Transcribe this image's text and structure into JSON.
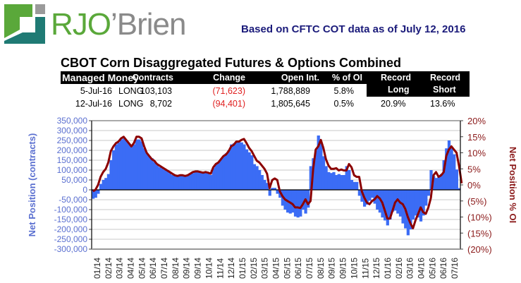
{
  "header": {
    "logo_rjo": "RJO",
    "logo_brien": "’Brien",
    "subtitle": "Based on CFTC COT data as of July 12, 2016"
  },
  "title": "CBOT Corn Disaggregated Futures & Options Combined",
  "table": {
    "headers": [
      "Managed Money",
      "Contracts",
      "Change",
      "Open Int.",
      "% of OI",
      "Record",
      "Record"
    ],
    "record_sub": [
      "Long",
      "Short"
    ],
    "rows": [
      {
        "date": "5-Jul-16",
        "side": "LONG",
        "contracts": "103,103",
        "change": "(71,623)",
        "open_int": "1,788,889",
        "pct_oi": "5.8%"
      },
      {
        "date": "12-Jul-16",
        "side": "LONG",
        "contracts": "8,702",
        "change": "(94,401)",
        "open_int": "1,805,645",
        "pct_oi": "0.5%",
        "record_long": "20.9%",
        "record_short": "13.6%"
      }
    ]
  },
  "colors": {
    "bars": "#3b6cf5",
    "line": "#8b0000",
    "left_axis": "#5a6fd0",
    "right_axis": "#8b1a1a",
    "negative": "#e02020",
    "subtitle": "#1a1a7a"
  },
  "chart_data": {
    "type": "bar+line",
    "title": "CBOT Corn Disaggregated Futures & Options Combined",
    "xlabel": "",
    "ylabel": "Net Position (contracts)",
    "y2label": "Net Position % OI",
    "ylim": [
      -300000,
      350000
    ],
    "y2lim": [
      -20,
      20
    ],
    "yticks": [
      "350,000",
      "300,000",
      "250,000",
      "200,000",
      "150,000",
      "100,000",
      "50,000",
      "0",
      "-50,000",
      "-100,000",
      "-150,000",
      "-200,000",
      "-250,000",
      "-300,000"
    ],
    "y2ticks": [
      "20%",
      "15%",
      "10%",
      "5%",
      "0%",
      "(5%)",
      "(10%)",
      "(15%)",
      "(20%)"
    ],
    "xticks": [
      "01/14",
      "02/14",
      "03/14",
      "04/14",
      "05/14",
      "06/14",
      "07/14",
      "08/14",
      "09/14",
      "09/14",
      "10/14",
      "11/14",
      "12/14",
      "01/15",
      "02/15",
      "03/15",
      "04/15",
      "05/15",
      "06/15",
      "07/15",
      "08/15",
      "09/15",
      "09/15",
      "10/15",
      "11/15",
      "12/15",
      "01/16",
      "02/16",
      "03/16",
      "04/16",
      "05/16",
      "06/16",
      "07/16"
    ],
    "grid": true,
    "series": [
      {
        "name": "Net Position (contracts)",
        "axis": "left",
        "type": "bar",
        "values": [
          -45000,
          -40000,
          -20000,
          30000,
          50000,
          60000,
          80000,
          150000,
          200000,
          230000,
          240000,
          255000,
          260000,
          250000,
          235000,
          225000,
          230000,
          255000,
          255000,
          245000,
          210000,
          185000,
          170000,
          160000,
          140000,
          125000,
          115000,
          110000,
          100000,
          95000,
          85000,
          75000,
          70000,
          68000,
          72000,
          70000,
          70000,
          72000,
          80000,
          85000,
          90000,
          90000,
          88000,
          85000,
          88000,
          85000,
          75000,
          110000,
          130000,
          140000,
          155000,
          170000,
          185000,
          200000,
          230000,
          235000,
          240000,
          245000,
          240000,
          230000,
          205000,
          190000,
          175000,
          130000,
          120000,
          100000,
          75000,
          50000,
          35000,
          -30000,
          10000,
          10000,
          -20000,
          -40000,
          -80000,
          -100000,
          -115000,
          -120000,
          -115000,
          -135000,
          -140000,
          -135000,
          -100000,
          -120000,
          -90000,
          120000,
          160000,
          200000,
          275000,
          240000,
          170000,
          120000,
          90000,
          85000,
          90000,
          75000,
          80000,
          75000,
          75000,
          120000,
          100000,
          50000,
          40000,
          40000,
          -30000,
          -60000,
          -85000,
          -75000,
          -55000,
          -40000,
          -70000,
          -100000,
          -115000,
          -140000,
          -155000,
          -180000,
          -150000,
          -110000,
          -105000,
          -120000,
          -135000,
          -170000,
          -195000,
          -230000,
          -200000,
          -150000,
          -130000,
          -140000,
          -160000,
          -130000,
          -80000,
          -30000,
          100000,
          70000,
          60000,
          65000,
          80000,
          150000,
          210000,
          250000,
          210000,
          180000,
          103103,
          8702
        ]
      },
      {
        "name": "Net Position % OI",
        "axis": "right",
        "type": "line",
        "values": [
          -2,
          -1.5,
          0,
          2.5,
          4,
          5,
          7,
          10.5,
          12,
          13,
          13.5,
          14.5,
          15,
          14,
          13,
          12,
          13,
          15,
          15,
          14.5,
          12,
          10,
          9,
          8,
          7.5,
          6.5,
          6,
          5.5,
          5,
          4.5,
          4,
          3.5,
          3,
          2.8,
          3,
          3,
          2.8,
          3,
          3.5,
          4,
          4.2,
          4.2,
          4,
          3.8,
          4,
          3.8,
          3.5,
          5.5,
          6.5,
          7,
          8,
          9,
          9.5,
          10.5,
          12,
          12.5,
          13.5,
          13.5,
          14,
          14.3,
          13,
          11.5,
          10.5,
          9,
          7.5,
          7,
          6,
          5,
          3.5,
          -1,
          1.5,
          2,
          1.5,
          -2,
          -3.5,
          -4.5,
          -5,
          -5.5,
          -6,
          -7,
          -7,
          -7.2,
          -6,
          -4.5,
          -6,
          -5,
          5,
          11,
          12,
          14,
          11.5,
          8,
          6,
          5,
          5,
          5.2,
          4.5,
          4.8,
          4.5,
          4.5,
          6.5,
          5.5,
          3,
          2.5,
          2.5,
          -2,
          -4,
          -5.5,
          -6,
          -5,
          -4.5,
          -3.5,
          -4.2,
          -5.5,
          -8,
          -10.5,
          -10.5,
          -8,
          -5.5,
          -4.5,
          -5.5,
          -6,
          -7.5,
          -10,
          -12,
          -13.5,
          -11,
          -9,
          -7,
          -8.5,
          -9,
          -7,
          -4,
          3,
          4,
          2.5,
          3,
          4,
          9,
          11,
          12,
          11,
          10,
          5.8,
          0.5
        ]
      }
    ]
  }
}
